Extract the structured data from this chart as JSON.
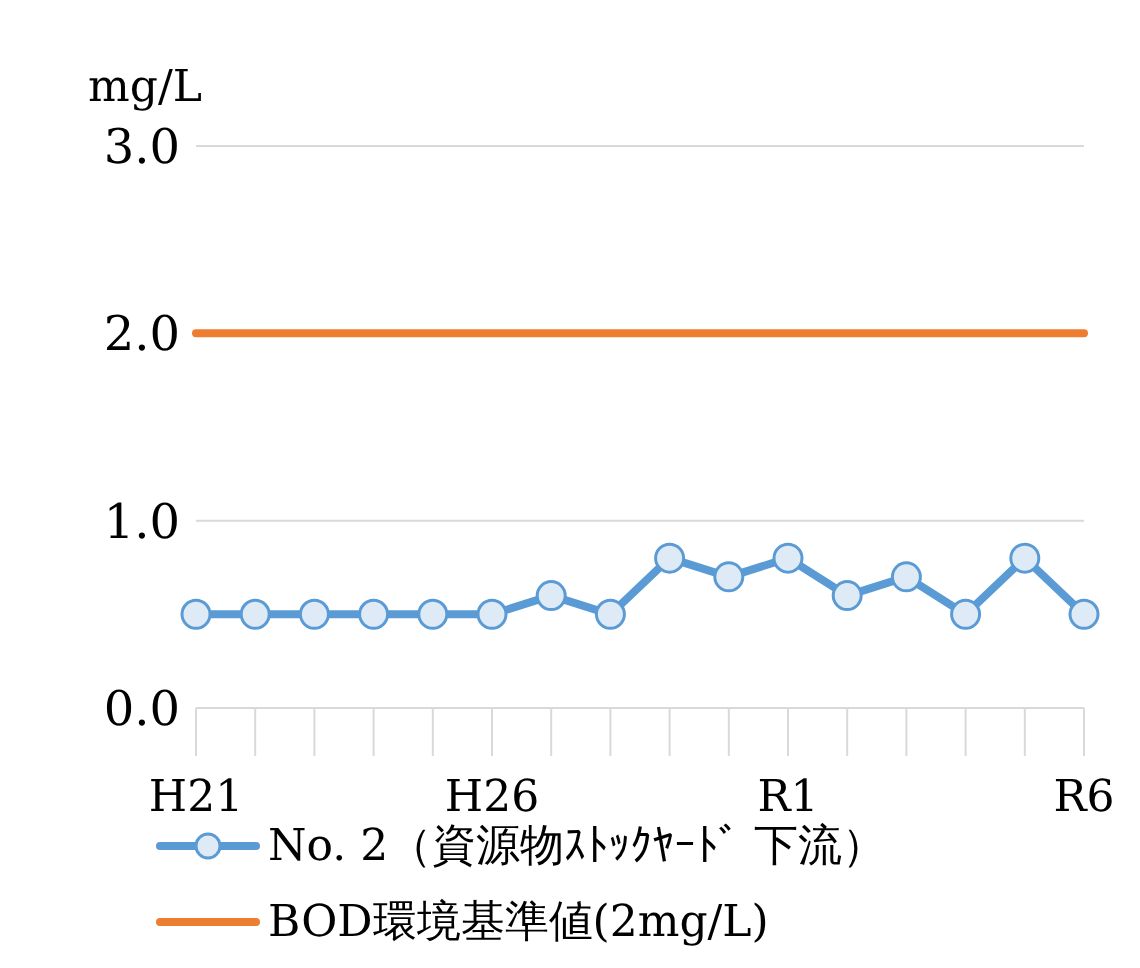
{
  "chart_data": {
    "type": "line",
    "ylabel": "mg/L",
    "categories": [
      "H21",
      null,
      null,
      null,
      null,
      "H26",
      null,
      null,
      null,
      null,
      "R1",
      null,
      null,
      null,
      null,
      "R6"
    ],
    "series": [
      {
        "name": "No. 2（資源物ｽﾄｯｸﾔｰﾄﾞ 下流）",
        "color": "#5b9bd5",
        "marker": "circle",
        "values": [
          0.5,
          0.5,
          0.5,
          0.5,
          0.5,
          0.5,
          0.6,
          0.5,
          0.8,
          0.7,
          0.8,
          0.6,
          0.7,
          0.5,
          0.8,
          0.5
        ]
      },
      {
        "name": "BOD環境基準値(2mg/L)",
        "color": "#ed7d31",
        "marker": "none",
        "values": [
          2,
          2,
          2,
          2,
          2,
          2,
          2,
          2,
          2,
          2,
          2,
          2,
          2,
          2,
          2,
          2
        ]
      }
    ],
    "ylim": [
      0,
      3
    ],
    "yticks": [
      {
        "value": 0,
        "label": "0.0"
      },
      {
        "value": 1,
        "label": "1.0"
      },
      {
        "value": 2,
        "label": "2.0"
      },
      {
        "value": 3,
        "label": "3.0"
      }
    ],
    "grid": "y",
    "legend": "bottom"
  }
}
